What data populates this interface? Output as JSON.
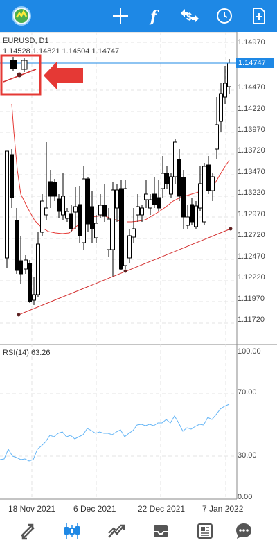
{
  "toolbar": {
    "icons": [
      "metatrader-logo-icon",
      "crosshair-icon",
      "indicators-icon",
      "symbol-swap-icon",
      "timeframe-clock-icon",
      "add-chart-icon"
    ]
  },
  "chart": {
    "symbol_label": "EURUSD, D1",
    "ohlc_label": "1.14528 1.14821 1.14504 1.14747",
    "current_price": "1.14747",
    "price_ticks": [
      "1.14970",
      "1.14470",
      "1.14220",
      "1.13970",
      "1.13720",
      "1.13470",
      "1.13220",
      "1.12970",
      "1.12720",
      "1.12470",
      "1.12220",
      "1.11970",
      "1.11720"
    ],
    "rsi_label": "RSI(14) 63.26",
    "rsi_ticks": [
      "100.00",
      "70.00",
      "30.00",
      "0.00"
    ],
    "date_ticks": [
      "18 Nov 2021",
      "6 Dec 2021",
      "22 Dec 2021",
      "7 Jan 2022"
    ],
    "colors": {
      "accent": "#1e88e5",
      "candle": "#000000",
      "moving_average": "#e53935",
      "trendline": "#d32f2f",
      "rsi_line": "#64b5f6",
      "annotation_arrow": "#e53935"
    }
  },
  "bottom_nav": {
    "icons": [
      "quotes-icon",
      "chart-icon",
      "trade-icon",
      "history-icon",
      "news-icon",
      "messages-icon"
    ],
    "active": "chart-icon"
  }
}
